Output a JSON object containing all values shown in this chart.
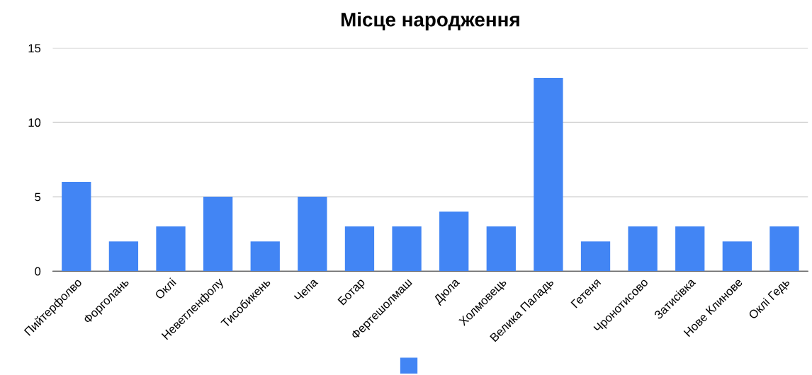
{
  "chart_data": {
    "type": "bar",
    "title": "Місце народження",
    "categories": [
      "Пийтерфолво",
      "Форголань",
      "Оклі",
      "Неветленфолу",
      "Тисобикень",
      "Чепа",
      "Ботар",
      "Фертешолмаш",
      "Дюла",
      "Холмовець",
      "Велика Паладь",
      "Гетеня",
      "Чронотисово",
      "Затисівка",
      "Нове Клинове",
      "Оклі Гедь"
    ],
    "series": [
      {
        "color": "#4285f4",
        "values": [
          6,
          2,
          3,
          5,
          2,
          5,
          3,
          3,
          4,
          3,
          13,
          2,
          3,
          3,
          2,
          3
        ]
      }
    ],
    "ylim": [
      0,
      15
    ],
    "yticks": [
      0,
      5,
      10,
      15
    ],
    "grid": "y"
  }
}
